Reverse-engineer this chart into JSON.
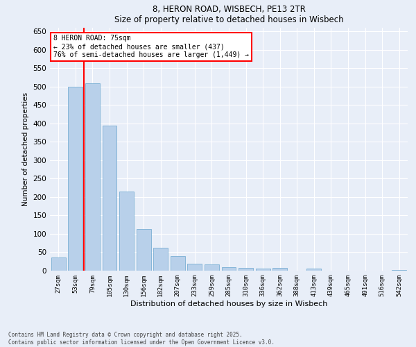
{
  "title1": "8, HERON ROAD, WISBECH, PE13 2TR",
  "title2": "Size of property relative to detached houses in Wisbech",
  "xlabel": "Distribution of detached houses by size in Wisbech",
  "ylabel": "Number of detached properties",
  "categories": [
    "27sqm",
    "53sqm",
    "79sqm",
    "105sqm",
    "130sqm",
    "156sqm",
    "182sqm",
    "207sqm",
    "233sqm",
    "259sqm",
    "285sqm",
    "310sqm",
    "336sqm",
    "362sqm",
    "388sqm",
    "413sqm",
    "439sqm",
    "465sqm",
    "491sqm",
    "516sqm",
    "542sqm"
  ],
  "values": [
    35,
    500,
    510,
    395,
    215,
    113,
    63,
    40,
    18,
    17,
    10,
    7,
    5,
    8,
    0,
    5,
    0,
    0,
    0,
    0,
    1
  ],
  "bar_color": "#b8d0ea",
  "bar_edge_color": "#7aafd4",
  "vline_x": 1.5,
  "vline_color": "red",
  "annotation_text": "8 HERON ROAD: 75sqm\n← 23% of detached houses are smaller (437)\n76% of semi-detached houses are larger (1,449) →",
  "annotation_box_color": "white",
  "annotation_box_edge": "red",
  "ylim": [
    0,
    660
  ],
  "yticks": [
    0,
    50,
    100,
    150,
    200,
    250,
    300,
    350,
    400,
    450,
    500,
    550,
    600,
    650
  ],
  "background_color": "#e8eef8",
  "grid_color": "white",
  "footnote1": "Contains HM Land Registry data © Crown copyright and database right 2025.",
  "footnote2": "Contains public sector information licensed under the Open Government Licence v3.0."
}
